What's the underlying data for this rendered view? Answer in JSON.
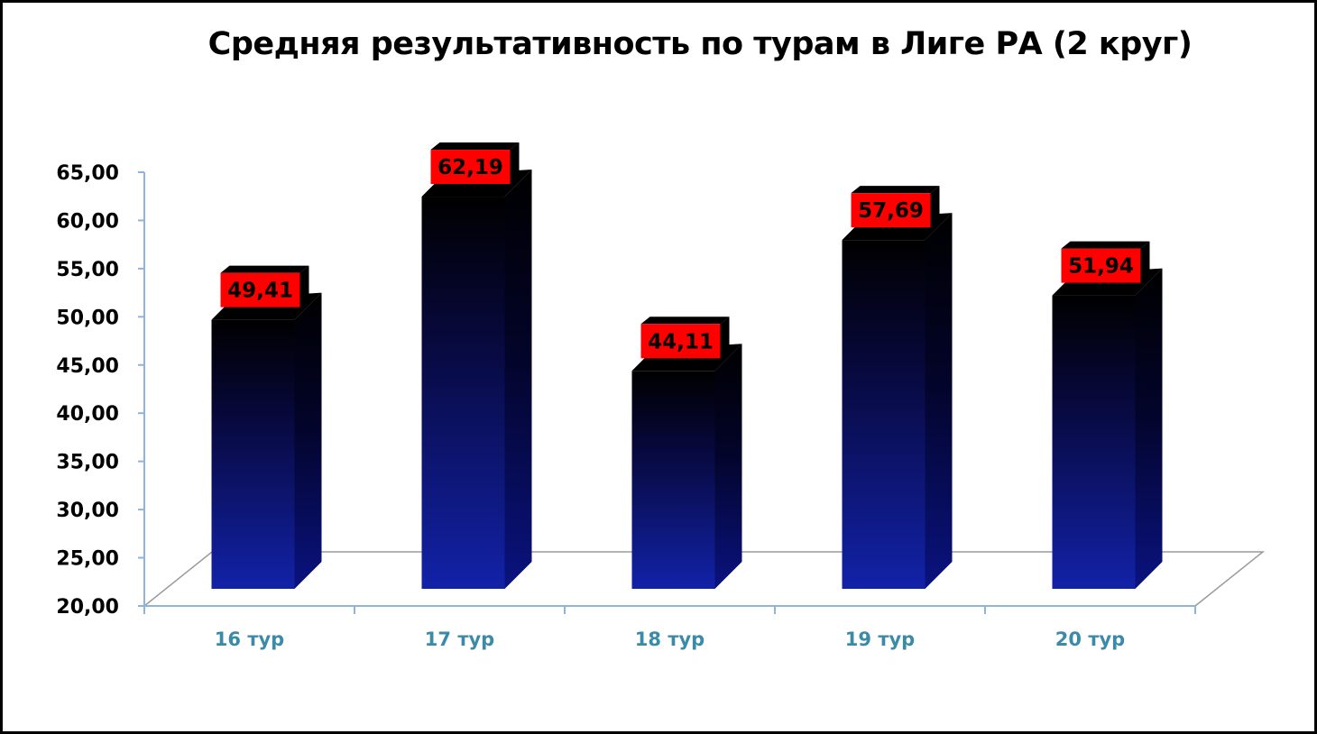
{
  "chart_data": {
    "type": "bar",
    "title": "Средняя результативность по турам в Лиге РА (2 круг)",
    "xlabel": "",
    "ylabel": "",
    "categories": [
      "16 тур",
      "17 тур",
      "18 тур",
      "19 тур",
      "20 тур"
    ],
    "values": [
      49.41,
      62.19,
      44.11,
      57.69,
      51.94
    ],
    "value_labels": [
      "49,41",
      "62,19",
      "44,11",
      "57,69",
      "51,94"
    ],
    "ylim": [
      20,
      65
    ],
    "yticks": [
      20,
      25,
      30,
      35,
      40,
      45,
      50,
      55,
      60,
      65
    ],
    "ytick_labels": [
      "20,00",
      "25,00",
      "30,00",
      "35,00",
      "40,00",
      "45,00",
      "50,00",
      "55,00",
      "60,00",
      "65,00"
    ],
    "grid": false,
    "legend": "none",
    "style": "3d-column",
    "colors": {
      "bar_top": "#000000",
      "bar_bottom": "#1222a8",
      "label_bg": "#ff0000",
      "axis": "#8fb4d9",
      "category_text": "#3a8aa8"
    }
  }
}
